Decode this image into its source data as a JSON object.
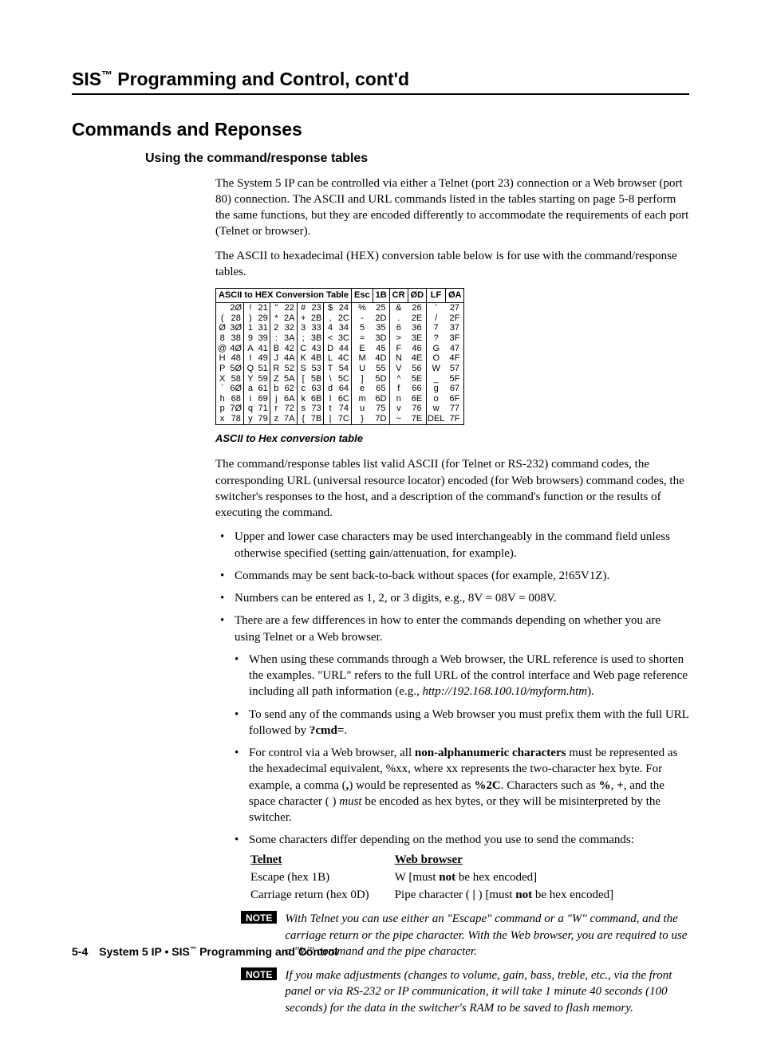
{
  "header": "SIS™ Programming and Control, cont'd",
  "title_h2": "Commands and Reponses",
  "title_h3": "Using the command/response tables",
  "para1": "The System 5 IP can be controlled via either a Telnet (port 23) connection or a Web browser (port 80) connection.  The ASCII and URL commands listed in the tables starting on page 5-8 perform the same functions, but they are encoded differently to accommodate the requirements of each port (Telnet or browser).",
  "para2": "The ASCII to hexadecimal (HEX) conversion table below is for use with the command/response tables.",
  "hex": {
    "title_left": "ASCII to HEX  Conversion Table",
    "extras": [
      "Esc",
      "1B",
      "CR",
      "ØD",
      "LF",
      "ØA"
    ],
    "rows": [
      [
        " ",
        "2Ø",
        "!",
        "21",
        "\"",
        "22",
        "#",
        "23",
        "$",
        "24",
        "%",
        "25",
        "&",
        "26",
        "'",
        "27"
      ],
      [
        "(",
        "28",
        ")",
        "29",
        "*",
        "2A",
        "+",
        "2B",
        ",",
        "2C",
        "-",
        "2D",
        ".",
        "2E",
        "/",
        "2F"
      ],
      [
        "Ø",
        "3Ø",
        "1",
        "31",
        "2",
        "32",
        "3",
        "33",
        "4",
        "34",
        "5",
        "35",
        "6",
        "36",
        "7",
        "37"
      ],
      [
        "8",
        "38",
        "9",
        "39",
        ":",
        "3A",
        ";",
        "3B",
        "<",
        "3C",
        "=",
        "3D",
        ">",
        "3E",
        "?",
        "3F"
      ],
      [
        "@",
        "4Ø",
        "A",
        "41",
        "B",
        "42",
        "C",
        "43",
        "D",
        "44",
        "E",
        "45",
        "F",
        "46",
        "G",
        "47"
      ],
      [
        "H",
        "48",
        "I",
        "49",
        "J",
        "4A",
        "K",
        "4B",
        "L",
        "4C",
        "M",
        "4D",
        "N",
        "4E",
        "O",
        "4F"
      ],
      [
        "P",
        "5Ø",
        "Q",
        "51",
        "R",
        "52",
        "S",
        "53",
        "T",
        "54",
        "U",
        "55",
        "V",
        "56",
        "W",
        "57"
      ],
      [
        "X",
        "58",
        "Y",
        "59",
        "Z",
        "5A",
        "[",
        "5B",
        "\\",
        "5C",
        "]",
        "5D",
        "^",
        "5E",
        "_",
        "5F"
      ],
      [
        "`",
        "6Ø",
        "a",
        "61",
        "b",
        "62",
        "c",
        "63",
        "d",
        "64",
        "e",
        "65",
        "f",
        "66",
        "g",
        "67"
      ],
      [
        "h",
        "68",
        "i",
        "69",
        "j",
        "6A",
        "k",
        "6B",
        "l",
        "6C",
        "m",
        "6D",
        "n",
        "6E",
        "o",
        "6F"
      ],
      [
        "p",
        "7Ø",
        "q",
        "71",
        "r",
        "72",
        "s",
        "73",
        "t",
        "74",
        "u",
        "75",
        "v",
        "76",
        "w",
        "77"
      ],
      [
        "x",
        "78",
        "y",
        "79",
        "z",
        "7A",
        "{",
        "7B",
        "|",
        "7C",
        "}",
        "7D",
        "~",
        "7E",
        "DEL",
        "7F"
      ]
    ]
  },
  "caption": "ASCII to Hex conversion table",
  "para3": "The command/response tables list valid ASCII (for Telnet or RS-232) command codes, the corresponding URL (universal resource locator) encoded (for Web browsers) command codes, the switcher's responses to the host, and a description of the command's function or the results of executing the command.",
  "bullets": {
    "b1": "Upper and lower case characters may be used interchangeably in the command field unless otherwise specified (setting gain/attenuation, for example).",
    "b2": "Commands may be sent back-to-back without spaces (for example, 2!65V1Z).",
    "b3": "Numbers can be entered as 1, 2, or 3 digits, e.g., 8V = 08V = 008V.",
    "b4": "There are a few differences in how to enter the commands depending on whether you are using Telnet or a Web browser.",
    "b4a_pre": "When using these commands through a Web browser, the URL reference is used to shorten the examples.  \"URL\" refers to the full URL of the control interface and Web page reference including all path information (e.g., ",
    "b4a_url": "http://192.168.100.10/myform.htm",
    "b4a_post": ").",
    "b4b_pre": "To send any of the commands using a Web browser you must prefix them with the full URL followed by ",
    "b4b_cmd": "?cmd=",
    "b4b_post": ".",
    "b4c_1": "For control via a Web browser, all ",
    "b4c_2": "non-alphanumeric characters",
    "b4c_3": " must be represented as the hexadecimal equivalent, %xx, where xx represents the two-character hex byte.  For example, a comma (",
    "b4c_4": ",",
    "b4c_5": ") would be represented as ",
    "b4c_6": "%2C",
    "b4c_7": ". Characters such as ",
    "b4c_8": "%",
    "b4c_9": ", ",
    "b4c_10": "+",
    "b4c_11": ", and the space character ( ) ",
    "b4c_12": "must",
    "b4c_13": " be encoded as hex bytes, or they will be misinterpreted by the switcher.",
    "b4d_intro": "Some characters differ depending on the method you use to send the commands:"
  },
  "method": {
    "th1": "Telnet",
    "th2": "Web browser",
    "r1c1": "Escape (hex 1B)",
    "r1c2_pre": "W [must ",
    "r1c2_b": "not",
    "r1c2_post": " be hex encoded]",
    "r2c1": "Carriage return (hex 0D)",
    "r2c2_pre": "Pipe character ( ",
    "r2c2_pipe": "|",
    "r2c2_mid": " ) [must ",
    "r2c2_b": "not",
    "r2c2_post": " be hex encoded]"
  },
  "note_label": "NOTE",
  "note1": "With Telnet you can use either an \"Escape\" command or a \"W\" command, and the carriage return or the pipe character.  With the Web browser, you are required to use a \"W\" command and the pipe character.",
  "note2": "If you make adjustments (changes to volume, gain, bass, treble, etc., via the front panel or via RS-232 or IP communication, it will take 1 minute 40 seconds (100 seconds) for the data in the switcher's RAM to be saved to flash memory.",
  "footer": {
    "pg": "5-4",
    "text": "System 5 IP • SIS™ Programming and Control"
  },
  "colors": {
    "text": "#000000",
    "bg": "#ffffff",
    "rule": "#000000"
  }
}
